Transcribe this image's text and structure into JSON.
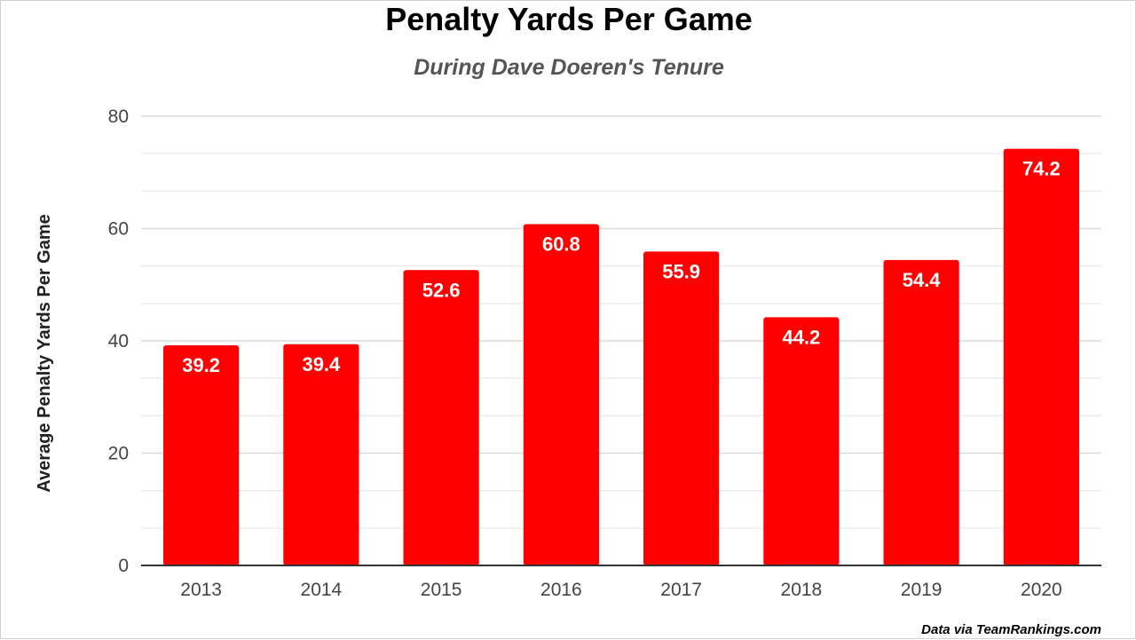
{
  "chart_data": {
    "type": "bar",
    "title": "Penalty Yards Per Game",
    "subtitle": "During Dave Doeren's Tenure",
    "xlabel": "",
    "ylabel": "Average Penalty Yards Per Game",
    "categories": [
      "2013",
      "2014",
      "2015",
      "2016",
      "2017",
      "2018",
      "2019",
      "2020"
    ],
    "values": [
      39.2,
      39.4,
      52.6,
      60.8,
      55.9,
      44.2,
      54.4,
      74.2
    ],
    "data_labels": [
      "39.2",
      "39.4",
      "52.6",
      "60.8",
      "55.9",
      "44.2",
      "54.4",
      "74.2"
    ],
    "ylim": [
      0,
      80
    ],
    "yticks": [
      0,
      20,
      40,
      60,
      80
    ],
    "minor_gridlines_every": 6.6667,
    "grid": true,
    "legend": "none",
    "bar_color": "#ff0000",
    "source_note": "Data via TeamRankings.com"
  }
}
